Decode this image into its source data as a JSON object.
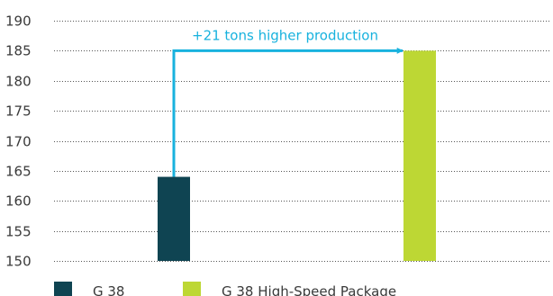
{
  "chart_data": {
    "type": "bar",
    "categories": [
      "G 38",
      "G 38 High-Speed Package"
    ],
    "series": [
      {
        "values": [
          164,
          185
        ]
      }
    ],
    "colors": [
      "#0f4452",
      "#bdd734"
    ],
    "ylim": [
      150,
      190
    ],
    "yticks": [
      150,
      155,
      160,
      165,
      170,
      175,
      180,
      185,
      190
    ],
    "grid": true,
    "legend_position": "bottom-left",
    "annotation": {
      "text": "+21 tons higher production",
      "from_category": "G 38",
      "to_category": "G 38 High-Speed Package",
      "color": "#18b2de"
    },
    "title": "",
    "xlabel": "",
    "ylabel": ""
  }
}
